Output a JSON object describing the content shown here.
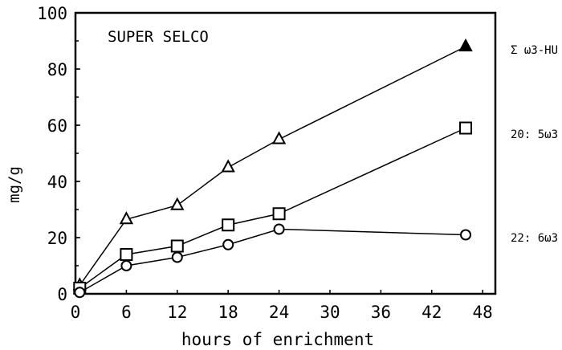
{
  "chart_data": {
    "type": "line",
    "title": "SUPER SELCO",
    "xlabel": "hours of enrichment",
    "ylabel": "mg/g",
    "xlim": [
      0,
      49.5
    ],
    "ylim": [
      0,
      100
    ],
    "x_ticks": [
      0,
      6,
      12,
      18,
      24,
      30,
      36,
      42,
      48
    ],
    "y_ticks": [
      0,
      20,
      40,
      60,
      80,
      100
    ],
    "grid": false,
    "legend": "right, labels next to series end",
    "series": [
      {
        "name": "Σ ω3-HU",
        "marker": "triangle",
        "x": [
          0.5,
          6,
          12,
          18,
          24,
          46
        ],
        "y": [
          3,
          26.5,
          31.5,
          45,
          55,
          88
        ]
      },
      {
        "name": "20: 5ω3",
        "marker": "square",
        "x": [
          0.5,
          6,
          12,
          18,
          24,
          46
        ],
        "y": [
          2,
          14,
          17,
          24.5,
          28.5,
          59
        ]
      },
      {
        "name": "22: 6ω3",
        "marker": "circle",
        "x": [
          0.5,
          6,
          12,
          18,
          24,
          46
        ],
        "y": [
          0.5,
          10,
          13,
          17.5,
          23,
          21
        ]
      }
    ]
  }
}
